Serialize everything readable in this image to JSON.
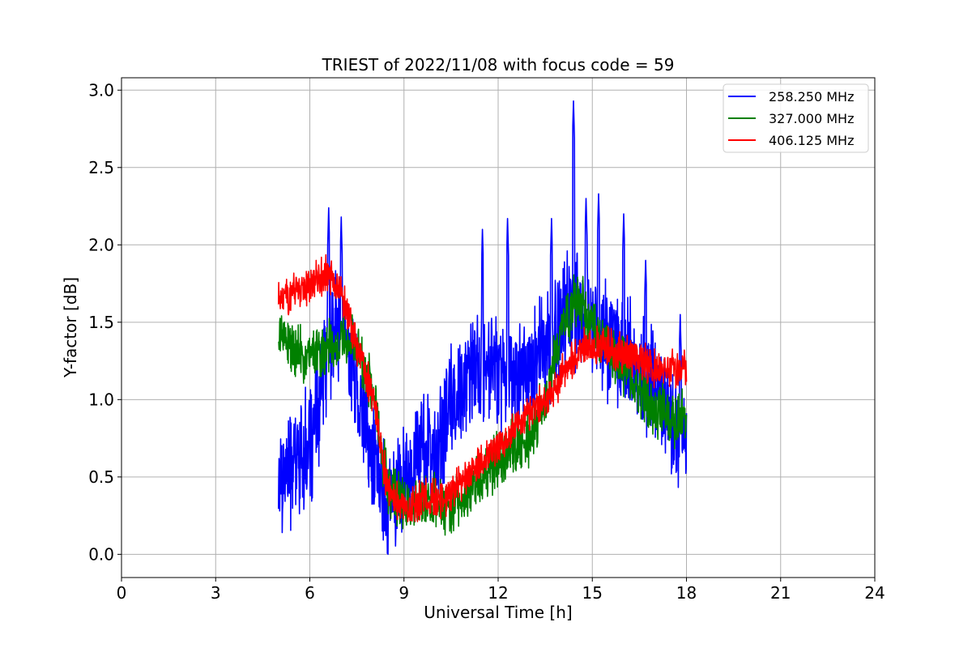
{
  "chart_data": {
    "type": "line",
    "title": "TRIEST of 2022/11/08 with focus code = 59",
    "xlabel": "Universal Time [h]",
    "ylabel": "Y-factor [dB]",
    "xlim": [
      0,
      24
    ],
    "ylim": [
      -0.15,
      3.08
    ],
    "x_ticks": [
      0,
      3,
      6,
      9,
      12,
      15,
      18,
      21,
      24
    ],
    "x_tick_labels": [
      "0",
      "3",
      "6",
      "9",
      "12",
      "15",
      "18",
      "21",
      "24"
    ],
    "y_ticks": [
      0.0,
      0.5,
      1.0,
      1.5,
      2.0,
      2.5,
      3.0
    ],
    "y_tick_labels": [
      "0.0",
      "0.5",
      "1.0",
      "1.5",
      "2.0",
      "2.5",
      "3.0"
    ],
    "grid": true,
    "legend_position": "top-right",
    "series": [
      {
        "name": "258.250 MHz",
        "color": "#0000ff",
        "x": [
          5.0,
          5.5,
          6.0,
          6.3,
          6.5,
          7.0,
          7.5,
          8.0,
          8.5,
          9.0,
          9.5,
          10.0,
          10.5,
          11.0,
          11.5,
          12.0,
          12.5,
          13.0,
          13.5,
          14.0,
          14.4,
          15.0,
          15.5,
          16.0,
          16.5,
          17.0,
          17.5,
          18.0
        ],
        "values": [
          0.5,
          0.6,
          0.7,
          0.9,
          1.3,
          1.5,
          1.1,
          0.6,
          0.35,
          0.45,
          0.7,
          0.6,
          1.0,
          1.1,
          1.25,
          1.2,
          1.15,
          1.2,
          1.3,
          1.5,
          1.6,
          1.5,
          1.4,
          1.3,
          1.2,
          1.1,
          0.9,
          0.7
        ],
        "peaks": [
          [
            6.6,
            2.24
          ],
          [
            7.0,
            2.18
          ],
          [
            11.5,
            2.1
          ],
          [
            12.3,
            2.17
          ],
          [
            13.7,
            2.17
          ],
          [
            14.4,
            2.93
          ],
          [
            14.8,
            2.3
          ],
          [
            15.2,
            2.33
          ],
          [
            16.0,
            2.2
          ],
          [
            16.7,
            1.9
          ],
          [
            17.8,
            1.55
          ]
        ],
        "spread": 0.45
      },
      {
        "name": "327.000 MHz",
        "color": "#008000",
        "x": [
          5.0,
          5.5,
          6.0,
          6.5,
          7.0,
          7.5,
          8.0,
          8.5,
          9.0,
          9.5,
          10.0,
          10.5,
          11.0,
          11.5,
          12.0,
          12.5,
          13.0,
          13.5,
          14.0,
          14.5,
          15.0,
          15.5,
          16.0,
          16.5,
          17.0,
          17.5,
          18.0
        ],
        "values": [
          1.45,
          1.3,
          1.3,
          1.3,
          1.35,
          1.35,
          1.05,
          0.4,
          0.3,
          0.3,
          0.35,
          0.3,
          0.4,
          0.5,
          0.6,
          0.7,
          0.75,
          1.0,
          1.45,
          1.65,
          1.5,
          1.35,
          1.2,
          1.05,
          0.95,
          0.9,
          0.9
        ],
        "spread": 0.22
      },
      {
        "name": "406.125 MHz",
        "color": "#ff0000",
        "x": [
          5.0,
          5.5,
          6.0,
          6.5,
          7.0,
          7.5,
          8.0,
          8.5,
          9.0,
          9.5,
          10.0,
          10.5,
          11.0,
          11.5,
          12.0,
          12.5,
          13.0,
          13.5,
          14.0,
          14.5,
          15.0,
          15.5,
          16.0,
          16.5,
          17.0,
          17.5,
          18.0
        ],
        "values": [
          1.65,
          1.7,
          1.75,
          1.8,
          1.7,
          1.35,
          1.05,
          0.4,
          0.3,
          0.35,
          0.35,
          0.4,
          0.5,
          0.6,
          0.7,
          0.8,
          0.9,
          1.0,
          1.15,
          1.3,
          1.35,
          1.35,
          1.3,
          1.25,
          1.2,
          1.2,
          1.2
        ],
        "spread": 0.15
      }
    ]
  }
}
